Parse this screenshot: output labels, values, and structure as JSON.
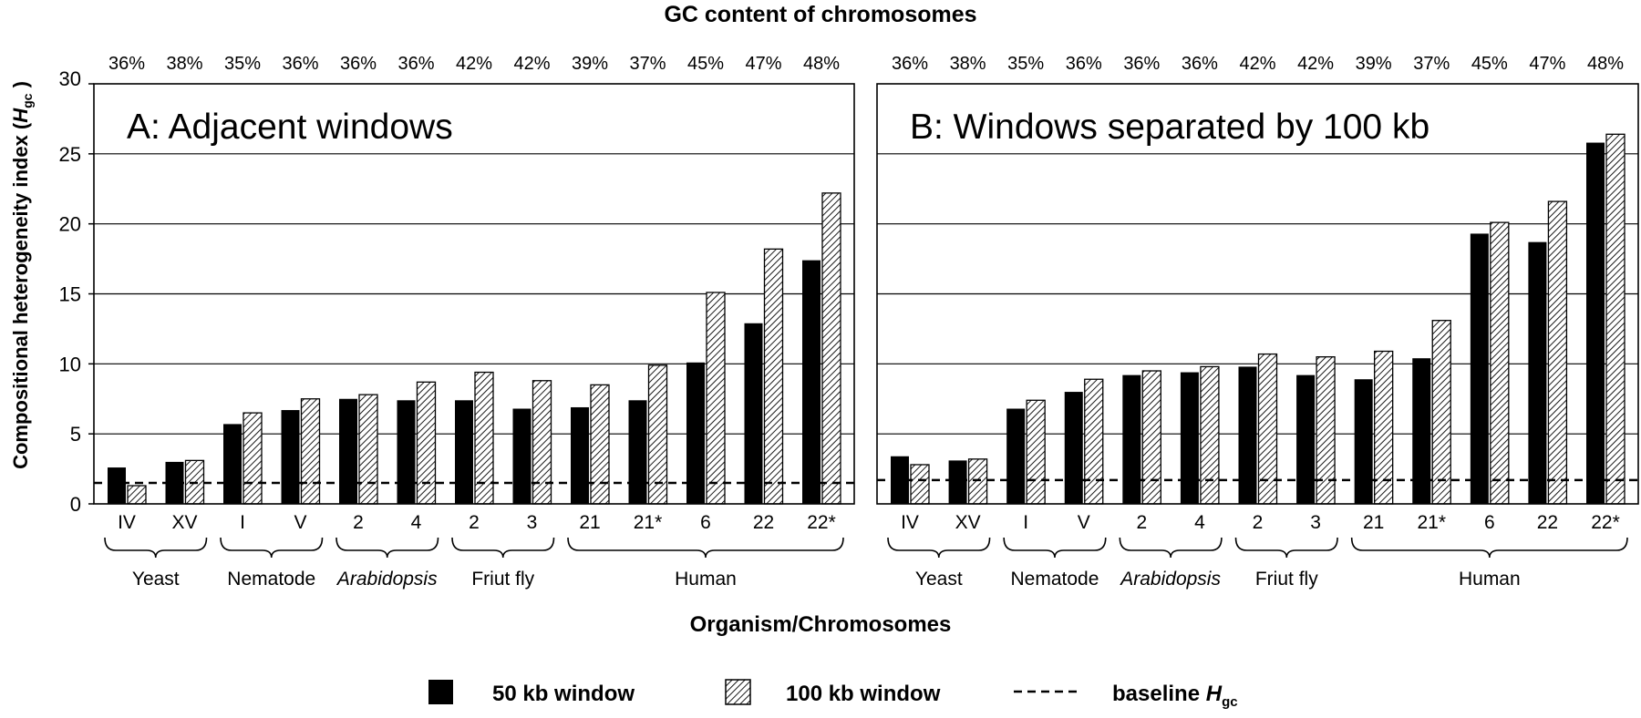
{
  "figure": {
    "top_title": "GC content of chromosomes",
    "y_axis_label_main": "Compositional heterogeneity index (",
    "y_axis_label_italic": "H",
    "y_axis_label_sub": "gc",
    "y_axis_label_end": " )",
    "x_axis_title": "Organism/Chromosomes",
    "legend": {
      "item_50": "50 kb window",
      "item_100": "100 kb window",
      "baseline_prefix": "baseline ",
      "baseline_italic": "H",
      "baseline_sub": "gc"
    },
    "colors": {
      "bar_50": "#000000",
      "hatch_100": "#000000",
      "frame": "#000000"
    }
  },
  "chart_data": [
    {
      "type": "bar",
      "title": "A: Adjacent windows",
      "ylabel": "Compositional heterogeneity index (Hgc)",
      "xlabel": "Organism/Chromosomes",
      "ylim": [
        0,
        30
      ],
      "yticks": [
        "0",
        "5",
        "10",
        "15",
        "20",
        "25",
        "30"
      ],
      "grid": true,
      "categories": [
        "IV",
        "XV",
        "I",
        "V",
        "2",
        "4",
        "2",
        "3",
        "21",
        "21*",
        "6",
        "22",
        "22*"
      ],
      "gc_content": [
        "36%",
        "38%",
        "35%",
        "36%",
        "36%",
        "36%",
        "42%",
        "42%",
        "39%",
        "37%",
        "45%",
        "47%",
        "48%"
      ],
      "groups": [
        {
          "label": "Yeast",
          "italic": false,
          "start": 0,
          "end": 1
        },
        {
          "label": "Nematode",
          "italic": false,
          "start": 2,
          "end": 3
        },
        {
          "label": "Arabidopsis",
          "italic": true,
          "start": 4,
          "end": 5
        },
        {
          "label": "Friut fly",
          "italic": false,
          "start": 6,
          "end": 7
        },
        {
          "label": "Human",
          "italic": false,
          "start": 8,
          "end": 12
        }
      ],
      "series": [
        {
          "name": "50 kb window",
          "values": [
            2.6,
            3.0,
            5.7,
            6.7,
            7.5,
            7.4,
            7.4,
            6.8,
            6.9,
            7.4,
            10.1,
            12.9,
            17.4
          ]
        },
        {
          "name": "100 kb window",
          "values": [
            1.3,
            3.1,
            6.5,
            7.5,
            7.8,
            8.7,
            9.4,
            8.8,
            8.5,
            9.9,
            15.1,
            18.2,
            22.2
          ]
        }
      ],
      "baseline": {
        "name": "baseline Hgc",
        "value": 1.5
      }
    },
    {
      "type": "bar",
      "title": "B: Windows separated by 100 kb",
      "ylim": [
        0,
        30
      ],
      "yticks": [
        "0",
        "5",
        "10",
        "15",
        "20",
        "25",
        "30"
      ],
      "grid": true,
      "categories": [
        "IV",
        "XV",
        "I",
        "V",
        "2",
        "4",
        "2",
        "3",
        "21",
        "21*",
        "6",
        "22",
        "22*"
      ],
      "gc_content": [
        "36%",
        "38%",
        "35%",
        "36%",
        "36%",
        "36%",
        "42%",
        "42%",
        "39%",
        "37%",
        "45%",
        "47%",
        "48%"
      ],
      "groups": [
        {
          "label": "Yeast",
          "italic": false,
          "start": 0,
          "end": 1
        },
        {
          "label": "Nematode",
          "italic": false,
          "start": 2,
          "end": 3
        },
        {
          "label": "Arabidopsis",
          "italic": true,
          "start": 4,
          "end": 5
        },
        {
          "label": "Friut fly",
          "italic": false,
          "start": 6,
          "end": 7
        },
        {
          "label": "Human",
          "italic": false,
          "start": 8,
          "end": 12
        }
      ],
      "series": [
        {
          "name": "50 kb window",
          "values": [
            3.4,
            3.1,
            6.8,
            8.0,
            9.2,
            9.4,
            9.8,
            9.2,
            8.9,
            10.4,
            19.3,
            18.7,
            25.8
          ]
        },
        {
          "name": "100 kb window",
          "values": [
            2.8,
            3.2,
            7.4,
            8.9,
            9.5,
            9.8,
            10.7,
            10.5,
            10.9,
            13.1,
            20.1,
            21.6,
            26.4
          ]
        }
      ],
      "baseline": {
        "name": "baseline Hgc",
        "value": 1.7
      }
    }
  ]
}
